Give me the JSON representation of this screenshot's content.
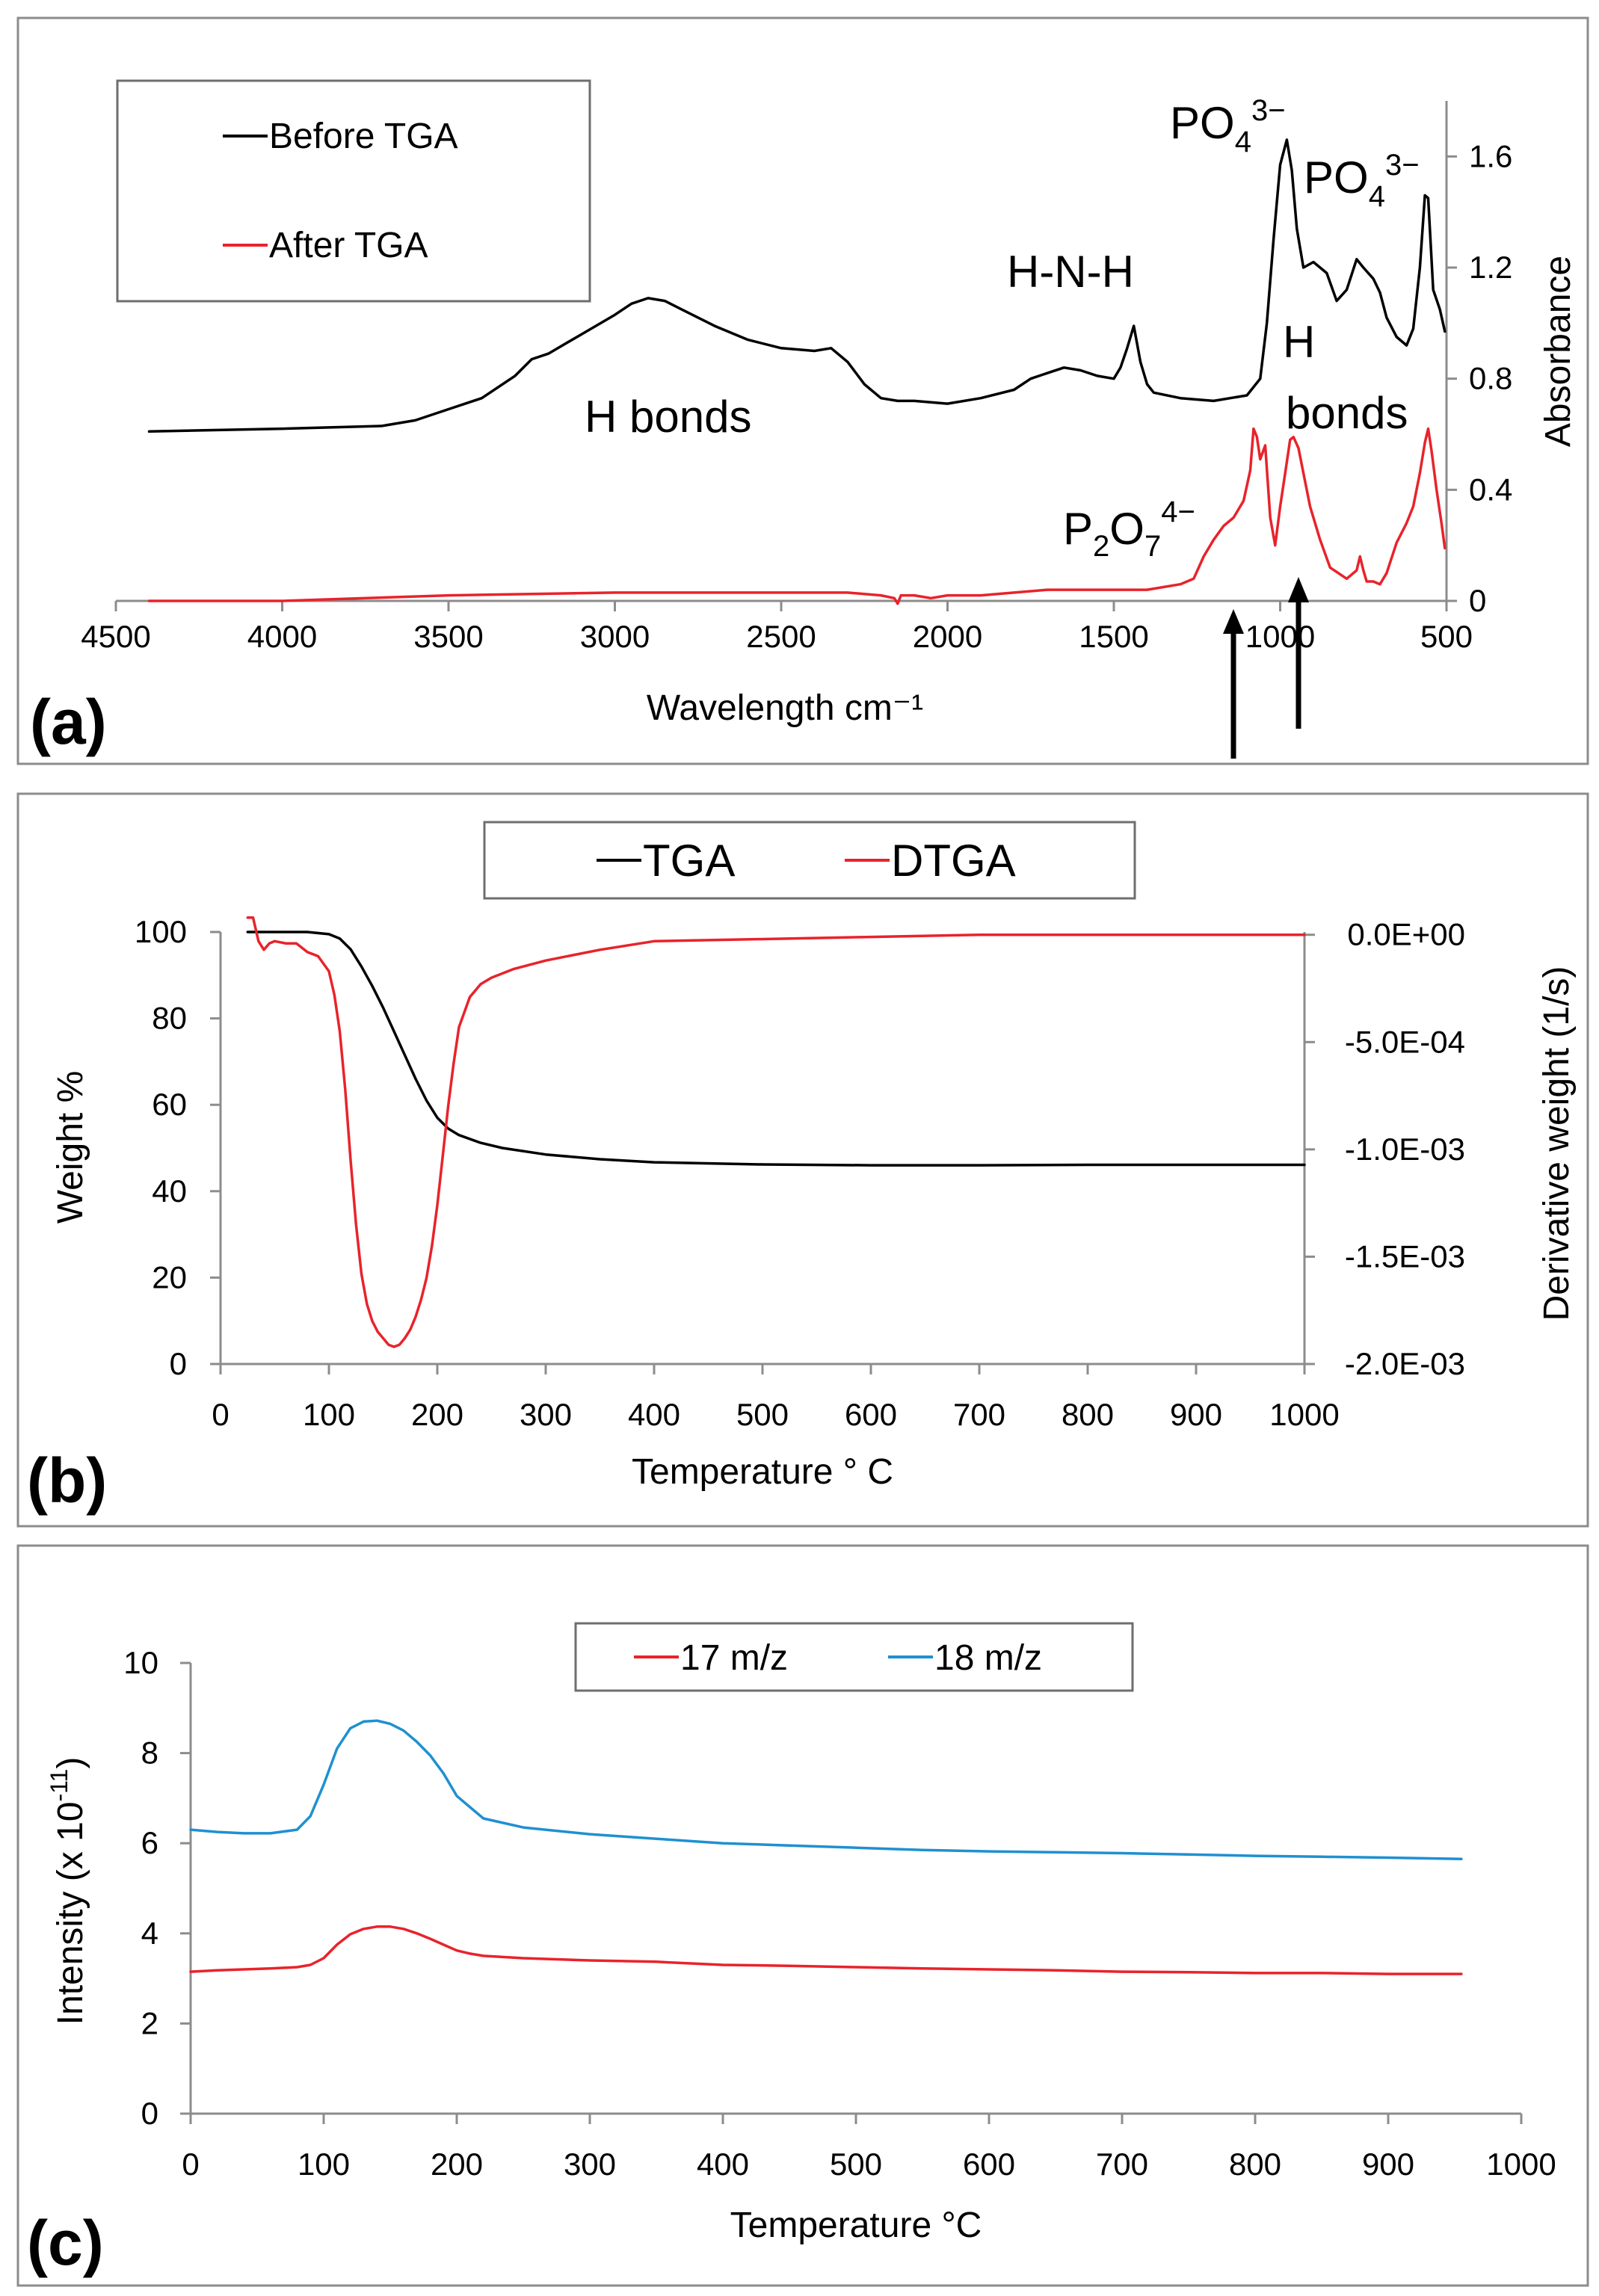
{
  "chart_data": [
    {
      "panel": "(a)",
      "type": "line",
      "xlabel": "Wavelength cm⁻¹",
      "ylabel": "Absorbance",
      "xlim": [
        4500,
        500
      ],
      "ylim": [
        0,
        1.8
      ],
      "x_ticks": [
        "4500",
        "4000",
        "3500",
        "3000",
        "2500",
        "2000",
        "1500",
        "1000",
        "500"
      ],
      "y_ticks": [
        "0",
        "0.4",
        "0.8",
        "1.2",
        "1.6"
      ],
      "y_tick_values": [
        0,
        0.4,
        0.8,
        1.2,
        1.6
      ],
      "x_tick_values": [
        4500,
        4000,
        3500,
        3000,
        2500,
        2000,
        1500,
        1000,
        500
      ],
      "legend": "top-left",
      "series": [
        {
          "name": "Before TGA",
          "color": "#000000",
          "x": [
            4400,
            4000,
            3700,
            3600,
            3500,
            3400,
            3300,
            3250,
            3200,
            3100,
            3000,
            2950,
            2900,
            2850,
            2800,
            2700,
            2600,
            2500,
            2400,
            2350,
            2300,
            2250,
            2200,
            2150,
            2100,
            2000,
            1900,
            1800,
            1750,
            1700,
            1650,
            1600,
            1550,
            1500,
            1480,
            1460,
            1440,
            1420,
            1400,
            1380,
            1300,
            1200,
            1100,
            1060,
            1040,
            1020,
            1000,
            980,
            965,
            950,
            930,
            900,
            860,
            830,
            800,
            770,
            750,
            720,
            700,
            680,
            650,
            620,
            600,
            580,
            565,
            555,
            540,
            520,
            505
          ],
          "y": [
            0.61,
            0.62,
            0.63,
            0.65,
            0.69,
            0.73,
            0.81,
            0.87,
            0.89,
            0.96,
            1.03,
            1.07,
            1.09,
            1.08,
            1.05,
            0.99,
            0.94,
            0.91,
            0.9,
            0.91,
            0.86,
            0.78,
            0.73,
            0.72,
            0.72,
            0.71,
            0.73,
            0.76,
            0.8,
            0.82,
            0.84,
            0.83,
            0.81,
            0.8,
            0.84,
            0.91,
            0.99,
            0.86,
            0.78,
            0.75,
            0.73,
            0.72,
            0.74,
            0.8,
            1.0,
            1.3,
            1.57,
            1.66,
            1.55,
            1.34,
            1.2,
            1.22,
            1.18,
            1.08,
            1.12,
            1.23,
            1.2,
            1.16,
            1.11,
            1.02,
            0.95,
            0.92,
            0.98,
            1.2,
            1.46,
            1.45,
            1.12,
            1.05,
            0.97
          ]
        },
        {
          "name": "After TGA",
          "color": "#e8232b",
          "x": [
            4400,
            4000,
            3500,
            3000,
            2500,
            2400,
            2300,
            2200,
            2160,
            2150,
            2140,
            2100,
            2050,
            2000,
            1950,
            1900,
            1800,
            1700,
            1600,
            1500,
            1400,
            1300,
            1260,
            1230,
            1200,
            1170,
            1140,
            1110,
            1090,
            1080,
            1070,
            1060,
            1045,
            1030,
            1015,
            1000,
            985,
            970,
            960,
            945,
            930,
            910,
            880,
            850,
            800,
            770,
            760,
            750,
            740,
            720,
            700,
            680,
            650,
            620,
            600,
            580,
            565,
            555,
            545,
            530,
            515,
            505
          ],
          "y": [
            0.0,
            0.0,
            0.02,
            0.03,
            0.03,
            0.03,
            0.03,
            0.02,
            0.01,
            -0.01,
            0.02,
            0.02,
            0.01,
            0.02,
            0.02,
            0.02,
            0.03,
            0.04,
            0.04,
            0.04,
            0.04,
            0.06,
            0.08,
            0.16,
            0.22,
            0.27,
            0.3,
            0.36,
            0.47,
            0.62,
            0.59,
            0.51,
            0.56,
            0.3,
            0.2,
            0.34,
            0.46,
            0.58,
            0.59,
            0.55,
            0.46,
            0.34,
            0.22,
            0.12,
            0.08,
            0.11,
            0.16,
            0.11,
            0.07,
            0.07,
            0.06,
            0.1,
            0.21,
            0.28,
            0.34,
            0.46,
            0.57,
            0.62,
            0.54,
            0.4,
            0.28,
            0.19
          ]
        }
      ],
      "annotations": {
        "h_bonds_1": "H bonds",
        "hnh": "H-N-H",
        "po4_1": "PO",
        "po4_1_sub": "4",
        "po4_1_sup": "3−",
        "po4_2": "PO",
        "po4_2_sub": "4",
        "po4_2_sup": "3−",
        "h_bonds_2a": "H",
        "h_bonds_2b": "bonds",
        "p2o7": "P",
        "p2o7_sub1": "2",
        "p2o7_mid": "O",
        "p2o7_sub2": "7",
        "p2o7_sup": "4−"
      }
    },
    {
      "panel": "(b)",
      "type": "line",
      "xlabel": "Temperature ° C",
      "ylabel": "Weight %",
      "y2label": "Derivative weight  (1/s)",
      "xlim": [
        0,
        1000
      ],
      "ylim": [
        0,
        100
      ],
      "y2lim": [
        -0.002,
        0.0001
      ],
      "x_ticks": [
        "0",
        "100",
        "200",
        "300",
        "400",
        "500",
        "600",
        "700",
        "800",
        "900",
        "1000"
      ],
      "x_tick_values": [
        0,
        100,
        200,
        300,
        400,
        500,
        600,
        700,
        800,
        900,
        1000
      ],
      "y_ticks": [
        "0",
        "20",
        "40",
        "60",
        "80",
        "100"
      ],
      "y_tick_values": [
        0,
        20,
        40,
        60,
        80,
        100
      ],
      "y2_ticks": [
        "0.0E+00",
        "-5.0E-04",
        "-1.0E-03",
        "-1.5E-03",
        "-2.0E-03"
      ],
      "y2_tick_values": [
        0,
        -0.0005,
        -0.001,
        -0.0015,
        -0.002
      ],
      "legend": "top-center",
      "series": [
        {
          "name": "TGA",
          "color": "#000000",
          "axis": "left",
          "x": [
            25,
            50,
            80,
            100,
            110,
            120,
            130,
            140,
            150,
            160,
            170,
            180,
            190,
            200,
            210,
            220,
            240,
            260,
            300,
            350,
            400,
            500,
            600,
            700,
            800,
            900,
            1000
          ],
          "y": [
            100,
            100,
            100,
            99.5,
            98.5,
            96,
            92,
            87.5,
            82.5,
            77,
            71.5,
            66,
            61,
            57,
            54.5,
            53,
            51.2,
            50,
            48.5,
            47.4,
            46.7,
            46.2,
            46,
            46,
            46.1,
            46.1,
            46.1
          ]
        },
        {
          "name": "DTGA",
          "color": "#e8232b",
          "axis": "right",
          "x": [
            25,
            30,
            35,
            40,
            45,
            50,
            60,
            70,
            80,
            90,
            100,
            105,
            110,
            115,
            120,
            125,
            130,
            135,
            140,
            145,
            150,
            155,
            160,
            165,
            170,
            175,
            180,
            185,
            190,
            195,
            200,
            205,
            210,
            215,
            220,
            230,
            240,
            250,
            270,
            300,
            350,
            400,
            500,
            600,
            700,
            800,
            900,
            1000
          ],
          "y": [
            8e-05,
            8e-05,
            -3e-05,
            -7e-05,
            -4e-05,
            -3e-05,
            -4e-05,
            -4e-05,
            -8e-05,
            -0.0001,
            -0.00017,
            -0.00028,
            -0.00045,
            -0.00072,
            -0.00105,
            -0.00135,
            -0.00158,
            -0.00172,
            -0.0018,
            -0.00185,
            -0.00188,
            -0.00191,
            -0.00192,
            -0.00191,
            -0.00188,
            -0.00184,
            -0.00178,
            -0.0017,
            -0.0016,
            -0.00145,
            -0.00126,
            -0.00103,
            -0.0008,
            -0.0006,
            -0.00043,
            -0.00029,
            -0.00023,
            -0.0002,
            -0.00016,
            -0.00012,
            -7e-05,
            -3e-05,
            -2e-05,
            -1e-05,
            0.0,
            0.0,
            0.0,
            0.0
          ]
        }
      ]
    },
    {
      "panel": "(c)",
      "type": "line",
      "xlabel": "Temperature °C",
      "ylabel": "Intensity (x 10",
      "ylabel_sup": "-11",
      "ylabel_end": ")",
      "xlim": [
        0,
        1000
      ],
      "ylim": [
        0,
        10
      ],
      "x_ticks": [
        "0",
        "100",
        "200",
        "300",
        "400",
        "500",
        "600",
        "700",
        "800",
        "900",
        "1000"
      ],
      "x_tick_values": [
        0,
        100,
        200,
        300,
        400,
        500,
        600,
        700,
        800,
        900,
        1000
      ],
      "y_ticks": [
        "0",
        "2",
        "4",
        "6",
        "8",
        "10"
      ],
      "y_tick_values": [
        0,
        2,
        4,
        6,
        8,
        10
      ],
      "legend": "top-center",
      "series": [
        {
          "name": "17 m/z",
          "color": "#e8232b",
          "x": [
            0,
            20,
            40,
            60,
            80,
            90,
            100,
            110,
            120,
            130,
            140,
            150,
            160,
            170,
            180,
            190,
            200,
            210,
            220,
            250,
            300,
            350,
            400,
            450,
            500,
            550,
            600,
            650,
            700,
            750,
            800,
            850,
            900,
            955
          ],
          "y": [
            3.15,
            3.18,
            3.2,
            3.22,
            3.25,
            3.3,
            3.45,
            3.75,
            3.98,
            4.1,
            4.15,
            4.15,
            4.1,
            4.0,
            3.88,
            3.75,
            3.62,
            3.55,
            3.5,
            3.45,
            3.4,
            3.37,
            3.3,
            3.28,
            3.25,
            3.22,
            3.2,
            3.18,
            3.15,
            3.14,
            3.12,
            3.12,
            3.1,
            3.1
          ]
        },
        {
          "name": "18 m/z",
          "color": "#1f90d0",
          "x": [
            0,
            20,
            40,
            60,
            80,
            90,
            100,
            110,
            120,
            130,
            140,
            150,
            160,
            170,
            180,
            190,
            200,
            210,
            220,
            250,
            300,
            350,
            400,
            450,
            500,
            550,
            600,
            650,
            700,
            750,
            800,
            850,
            900,
            955
          ],
          "y": [
            6.3,
            6.25,
            6.22,
            6.22,
            6.3,
            6.6,
            7.3,
            8.1,
            8.55,
            8.7,
            8.72,
            8.65,
            8.5,
            8.25,
            7.95,
            7.55,
            7.05,
            6.8,
            6.55,
            6.35,
            6.2,
            6.1,
            6.0,
            5.95,
            5.9,
            5.85,
            5.82,
            5.8,
            5.78,
            5.75,
            5.72,
            5.7,
            5.68,
            5.65
          ]
        }
      ]
    }
  ]
}
